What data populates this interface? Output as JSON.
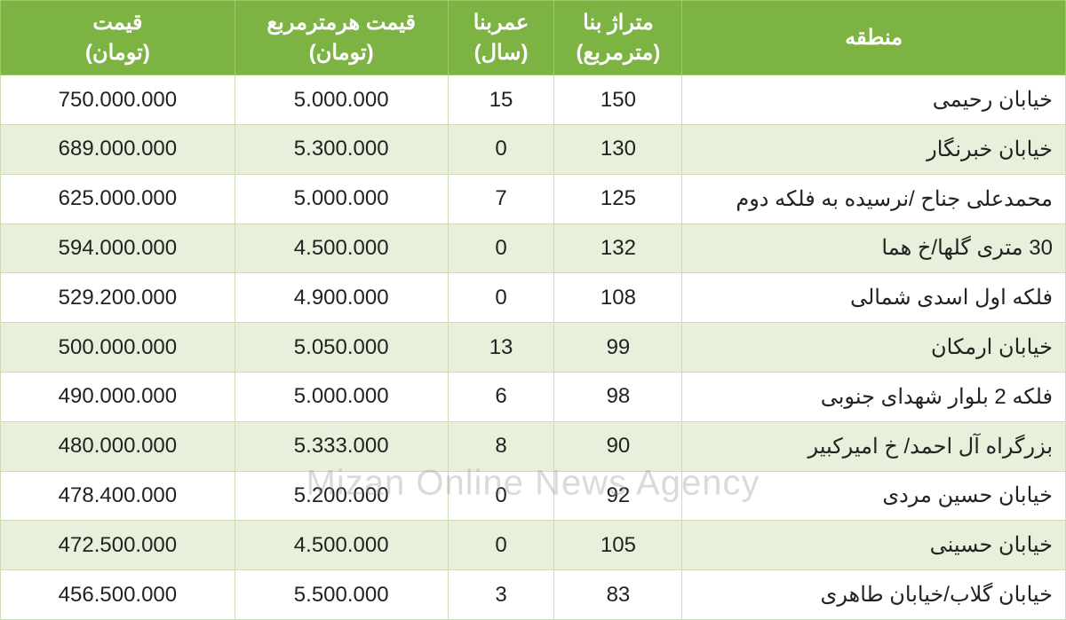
{
  "table": {
    "type": "table",
    "header_bg": "#7cb342",
    "header_text_color": "#ffffff",
    "row_odd_bg": "#ffffff",
    "row_even_bg": "#e8f0db",
    "border_color": "#cddbb8",
    "header_border_color": "#9ccc65",
    "text_color": "#222222",
    "header_fontsize": 24,
    "cell_fontsize": 24,
    "columns": [
      {
        "key": "region",
        "label_line1": "منطقه",
        "label_line2": "",
        "align": "right",
        "width_pct": 36
      },
      {
        "key": "area",
        "label_line1": "متراژ بنا",
        "label_line2": "(مترمربع)",
        "align": "center",
        "width_pct": 12
      },
      {
        "key": "age",
        "label_line1": "عمربنا",
        "label_line2": "(سال)",
        "align": "center",
        "width_pct": 10
      },
      {
        "key": "ppsm",
        "label_line1": "قیمت هرمترمربع",
        "label_line2": "(تومان)",
        "align": "center",
        "width_pct": 20
      },
      {
        "key": "price",
        "label_line1": "قیمت",
        "label_line2": "(تومان)",
        "align": "center",
        "width_pct": 22
      }
    ],
    "rows": [
      {
        "region": "خیابان رحیمی",
        "area": "150",
        "age": "15",
        "ppsm": "5.000.000",
        "price": "750.000.000"
      },
      {
        "region": "خیابان خبرنگار",
        "area": "130",
        "age": "0",
        "ppsm": "5.300.000",
        "price": "689.000.000"
      },
      {
        "region": "محمدعلی جناح /نرسیده به فلکه دوم",
        "area": "125",
        "age": "7",
        "ppsm": "5.000.000",
        "price": "625.000.000"
      },
      {
        "region": "30 متری گلها/خ هما",
        "area": "132",
        "age": "0",
        "ppsm": "4.500.000",
        "price": "594.000.000"
      },
      {
        "region": "فلکه اول اسدی شمالی",
        "area": "108",
        "age": "0",
        "ppsm": "4.900.000",
        "price": "529.200.000"
      },
      {
        "region": "خیابان ارمکان",
        "area": "99",
        "age": "13",
        "ppsm": "5.050.000",
        "price": "500.000.000"
      },
      {
        "region": "فلکه 2 بلوار شهدای جنوبی",
        "area": "98",
        "age": "6",
        "ppsm": "5.000.000",
        "price": "490.000.000"
      },
      {
        "region": "بزرگراه آل احمد/ خ امیرکبیر",
        "area": "90",
        "age": "8",
        "ppsm": "5.333.000",
        "price": "480.000.000"
      },
      {
        "region": "خیابان حسین مردی",
        "area": "92",
        "age": "0",
        "ppsm": "5.200.000",
        "price": "478.400.000"
      },
      {
        "region": "خیابان حسینی",
        "area": "105",
        "age": "0",
        "ppsm": "4.500.000",
        "price": "472.500.000"
      },
      {
        "region": "خیابان گلاب/خیابان طاهری",
        "area": "83",
        "age": "3",
        "ppsm": "5.500.000",
        "price": "456.500.000"
      }
    ]
  },
  "watermark": {
    "text": "Mizan Online News Agency",
    "color": "rgba(150,150,150,0.35)",
    "fontsize": 40
  }
}
